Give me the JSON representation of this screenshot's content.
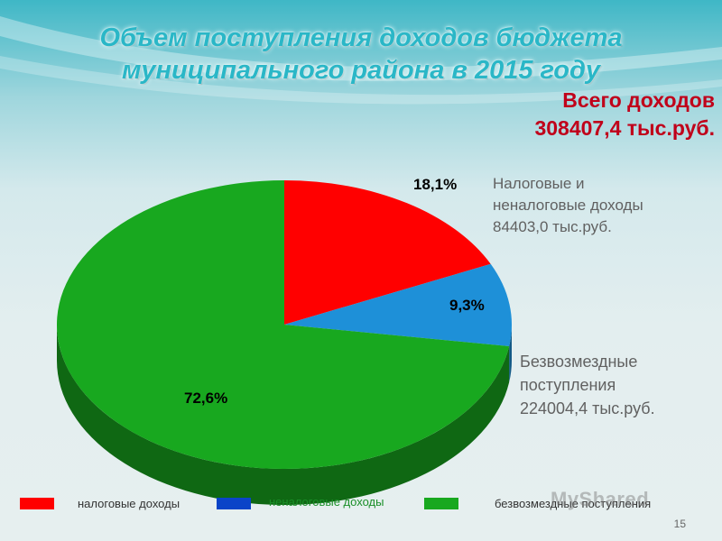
{
  "title": "Объем поступления доходов бюджета муниципального района в 2015 году",
  "total": {
    "line1": "Всего доходов",
    "line2": "308407,4 тыс.руб."
  },
  "annotations": {
    "tax_nontax": [
      "Налоговые и",
      "неналоговые доходы",
      "84403,0 тыс.руб."
    ],
    "gratuitous": [
      "Безвозмездные",
      "поступления",
      "224004,4 тыс.руб."
    ]
  },
  "chart_data": {
    "type": "pie",
    "title": "",
    "slices": [
      {
        "label": "налоговые доходы",
        "value": 18.1,
        "display": "18,1%",
        "color": "#ff0000"
      },
      {
        "label": "неналоговые доходы",
        "value": 9.3,
        "display": "9,3%",
        "color": "#1e90d8"
      },
      {
        "label": "безвозмездные поступления",
        "value": 72.6,
        "display": "72,6%",
        "color": "#18a81f"
      }
    ],
    "legend_position": "bottom"
  },
  "legend": [
    {
      "label": "налоговые доходы",
      "color": "#ff0000"
    },
    {
      "label": "неналоговые доходы",
      "color": "#0a44c8"
    },
    {
      "label": "безвозмездные поступления",
      "color": "#18a81f"
    }
  ],
  "page_number": "15",
  "watermark": "MyShared"
}
